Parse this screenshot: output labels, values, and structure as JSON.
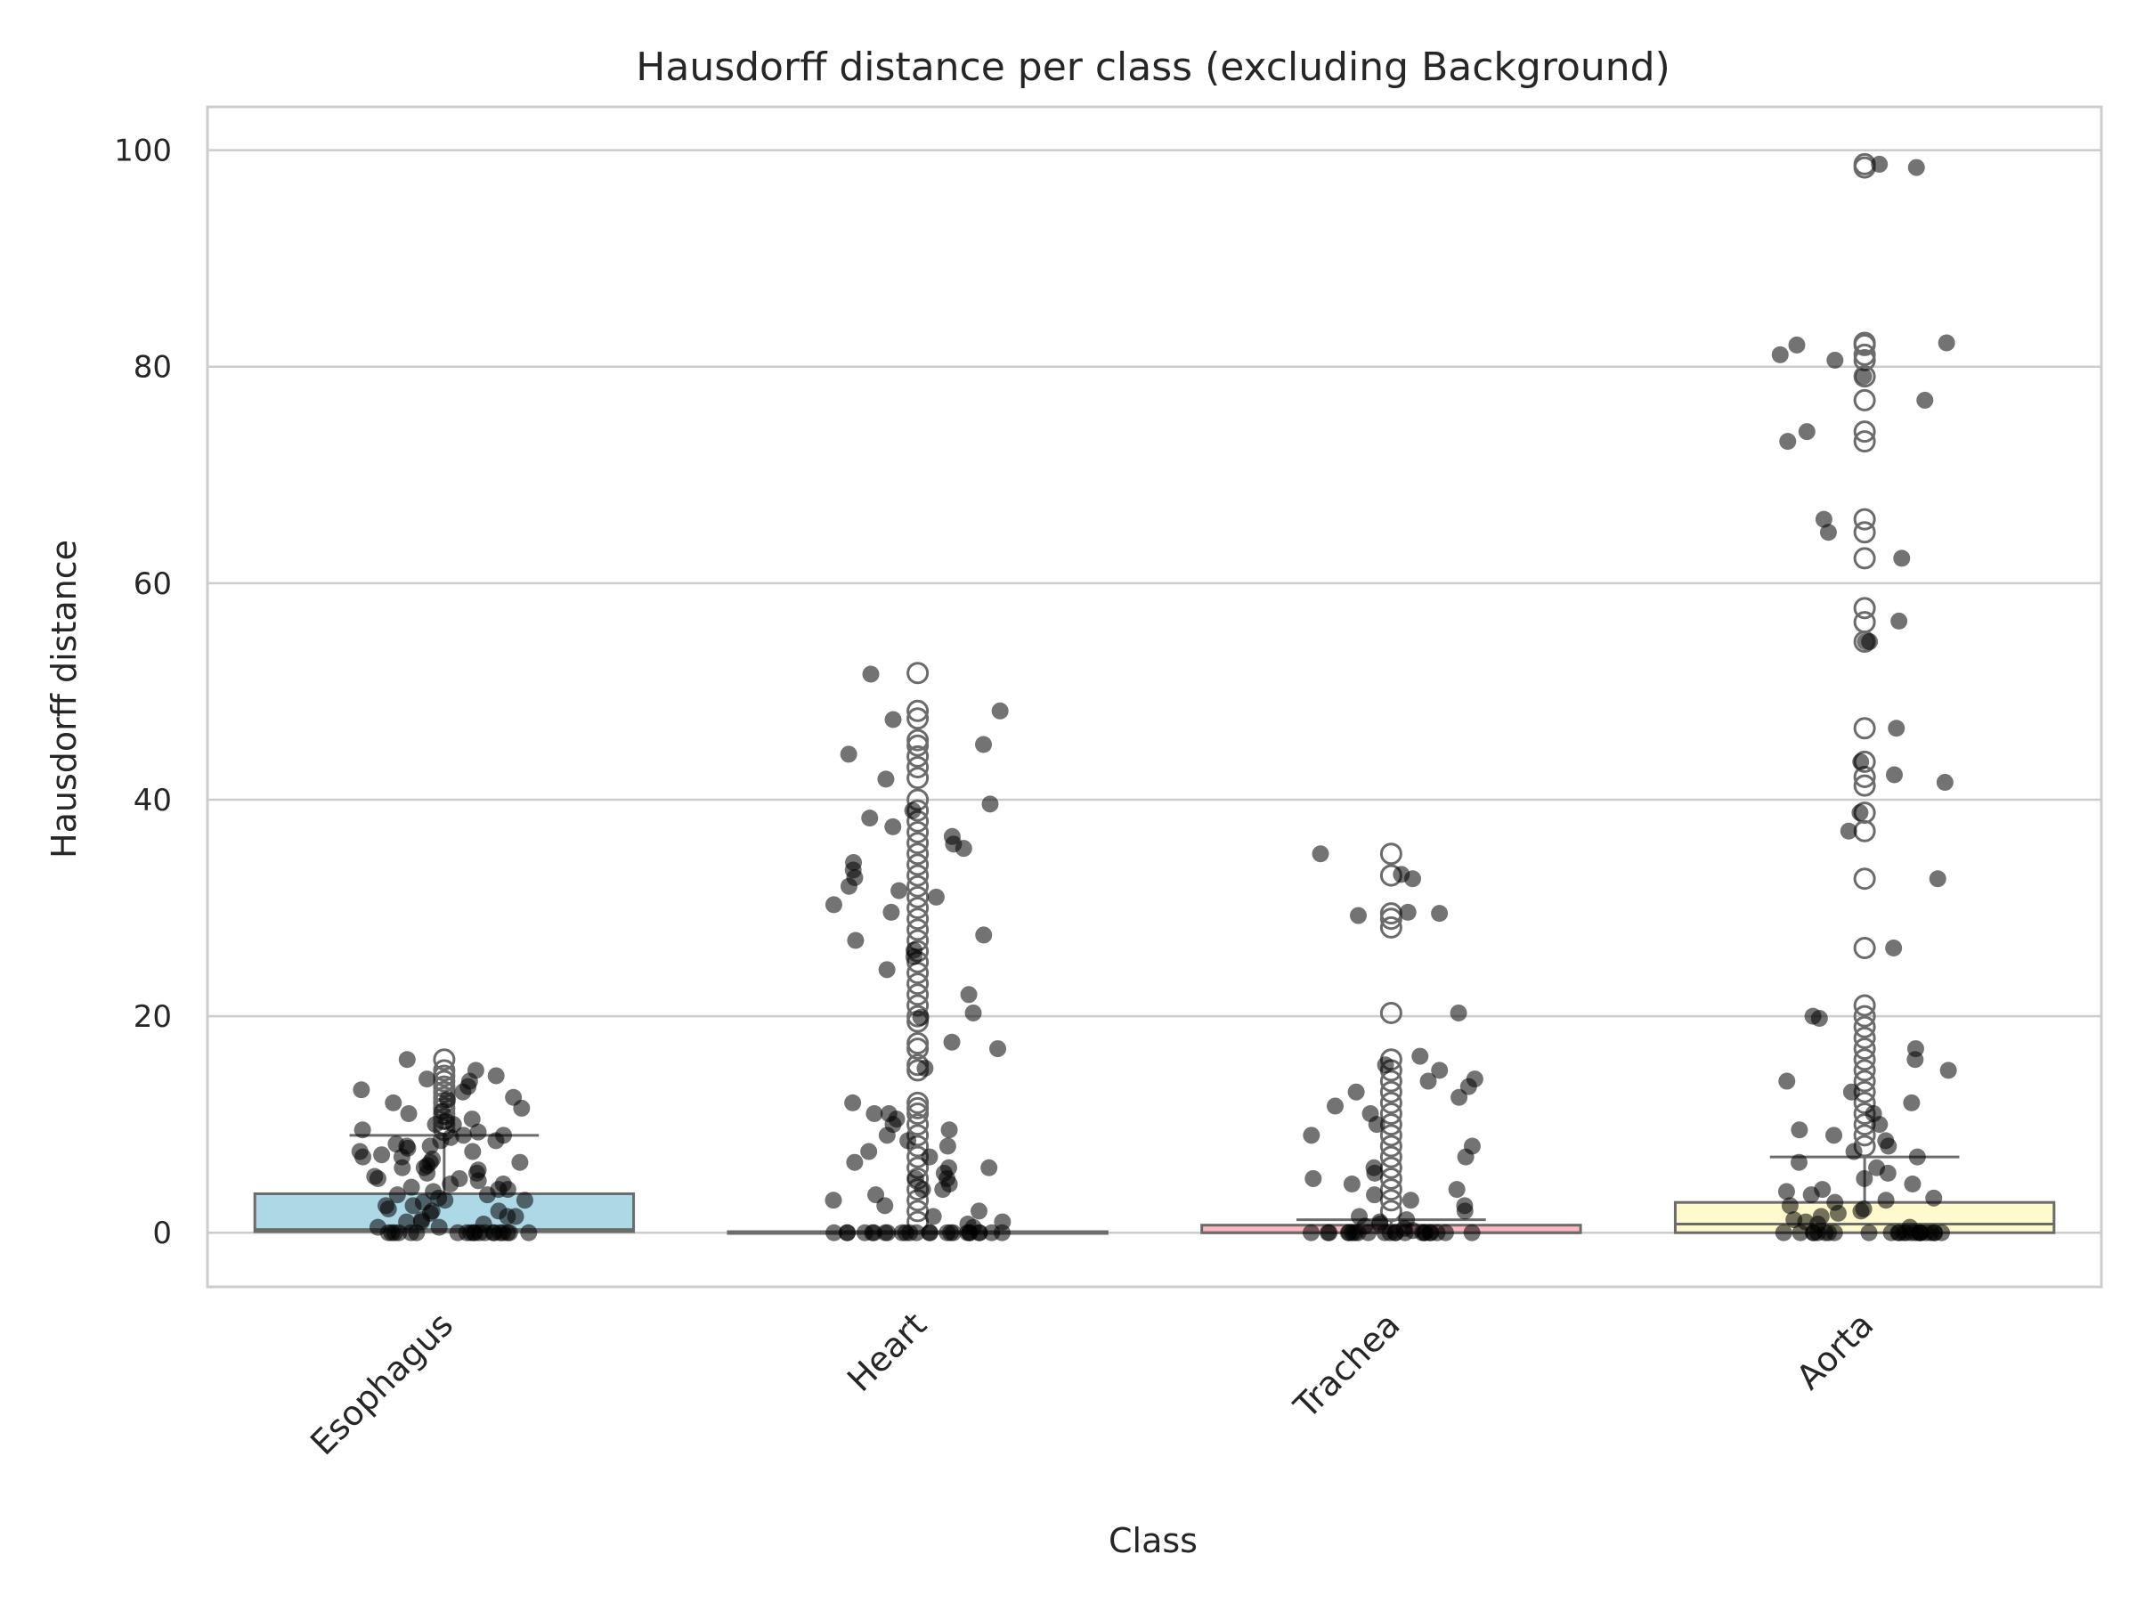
{
  "chart_data": {
    "type": "box",
    "title": "Hausdorff distance per class (excluding Background)",
    "xlabel": "Class",
    "ylabel": "Hausdorff distance",
    "ylim": [
      -5,
      104
    ],
    "yticks": [
      0,
      20,
      40,
      60,
      80,
      100
    ],
    "grid": "horizontal",
    "categories": [
      "Esophagus",
      "Heart",
      "Trachea",
      "Aorta"
    ],
    "colors": {
      "Esophagus": "#add8e6",
      "Heart": "#90ee90",
      "Trachea": "#ffb6c1",
      "Aorta": "#fffacd",
      "grid": "#cccccc",
      "frame": "#cccccc",
      "box_edge": "#6b6b6b",
      "points": "#000000"
    },
    "boxes": [
      {
        "category": "Esophagus",
        "q1": 0.1,
        "median": 0.3,
        "q3": 3.6,
        "whisker_low": 0,
        "whisker_high": 9.0,
        "fliers": [
          9.5,
          10,
          10.5,
          11,
          11.5,
          12,
          12.5,
          13,
          13.5,
          14,
          14.5,
          15,
          16.0
        ]
      },
      {
        "category": "Heart",
        "q1": 0,
        "median": 0,
        "q3": 0.1,
        "whisker_low": 0,
        "whisker_high": 0.1,
        "fliers": [
          1,
          2,
          3,
          4,
          5,
          6,
          7,
          8,
          9,
          10,
          11,
          11.5,
          12,
          15,
          15.5,
          17,
          17.5,
          19.5,
          20,
          21,
          22,
          23,
          24,
          25,
          26,
          27,
          28,
          29,
          30,
          31,
          32,
          33,
          34,
          35,
          36,
          37,
          38,
          39,
          40,
          42,
          43,
          44,
          45,
          45.5,
          47.5,
          48.2,
          51.7
        ]
      },
      {
        "category": "Trachea",
        "q1": 0,
        "median": 0,
        "q3": 0.7,
        "whisker_low": 0,
        "whisker_high": 1.2,
        "fliers": [
          2,
          3,
          4,
          5,
          6,
          7,
          8,
          9,
          10,
          11,
          12,
          13,
          14,
          15,
          16,
          20.3,
          28.2,
          29,
          29.5,
          33,
          35
        ]
      },
      {
        "category": "Aorta",
        "q1": 0,
        "median": 0.8,
        "q3": 2.8,
        "whisker_low": 0,
        "whisker_high": 7.0,
        "fliers": [
          8,
          9,
          10,
          11,
          12,
          13,
          14,
          15,
          16,
          17,
          18,
          19,
          20,
          21,
          26.3,
          32.7,
          37.1,
          38.8,
          41.3,
          42.1,
          43.5,
          46.6,
          54.6,
          56.4,
          57.7,
          62.3,
          64.7,
          65.9,
          73.1,
          74,
          76.9,
          79.1,
          80.6,
          81.1,
          82,
          82.2,
          98.4,
          98.7
        ]
      }
    ],
    "strip_points": [
      {
        "category": "Esophagus",
        "values": [
          0,
          0,
          0,
          0,
          0,
          0,
          0,
          0,
          0,
          0,
          0,
          0,
          0,
          0,
          0,
          0,
          0,
          0,
          0,
          0,
          0.5,
          0.5,
          0.8,
          1,
          1,
          1.2,
          1.5,
          1.5,
          1.8,
          2,
          2,
          2.2,
          2.5,
          2.5,
          2.8,
          3,
          3,
          3.2,
          3.5,
          3.5,
          3.8,
          4,
          4,
          4.2,
          4.5,
          4.5,
          4.8,
          5,
          5,
          5.2,
          5.5,
          5.5,
          5.8,
          6,
          6,
          6.2,
          6.5,
          6.5,
          6.8,
          7,
          7,
          7.2,
          7.5,
          7.5,
          7.8,
          8,
          8,
          8.2,
          8.5,
          8.5,
          8.8,
          9,
          9,
          9.3,
          9.5,
          10,
          10,
          10.3,
          10.5,
          11,
          11.2,
          11.5,
          12,
          12.3,
          12.5,
          13,
          13.2,
          13.5,
          14,
          14.2,
          14.5,
          15,
          16
        ]
      },
      {
        "category": "Heart",
        "values": [
          0,
          0,
          0,
          0,
          0,
          0,
          0,
          0,
          0,
          0,
          0,
          0,
          0,
          0,
          0,
          0,
          0,
          0,
          0,
          0,
          0,
          0,
          0,
          0,
          0.5,
          0.8,
          1,
          1.5,
          2,
          2.5,
          3,
          3.5,
          4,
          4,
          4.5,
          5,
          5,
          5.5,
          6,
          6,
          6.5,
          7,
          7.5,
          8,
          8.5,
          9,
          9.5,
          10,
          10.5,
          11,
          11,
          12,
          15.2,
          17,
          17.6,
          19.9,
          20.3,
          22,
          24.3,
          25.5,
          26.1,
          27,
          27.5,
          29.6,
          30.3,
          31,
          31.6,
          32,
          32.8,
          33.5,
          34.2,
          35.5,
          35.9,
          36.6,
          37.5,
          38.3,
          39,
          39.6,
          41.9,
          44.2,
          45.1,
          47.4,
          48.2,
          51.6
        ]
      },
      {
        "category": "Trachea",
        "values": [
          0,
          0,
          0,
          0,
          0,
          0,
          0,
          0,
          0,
          0,
          0,
          0,
          0,
          0,
          0,
          0,
          0,
          0,
          0,
          0,
          0,
          0,
          0.2,
          0.4,
          0.6,
          0.8,
          1,
          1.2,
          1.5,
          2,
          2.5,
          3,
          3.5,
          4,
          4.5,
          5,
          5.5,
          6,
          7,
          8,
          9,
          10,
          11,
          11.7,
          12.5,
          13,
          13.5,
          14,
          14.2,
          15,
          15.5,
          16.3,
          20.3,
          29.3,
          29.5,
          29.6,
          32.7,
          33.1,
          35
        ]
      },
      {
        "category": "Aorta",
        "values": [
          0,
          0,
          0,
          0,
          0,
          0,
          0,
          0,
          0,
          0,
          0,
          0,
          0,
          0,
          0,
          0,
          0,
          0,
          0,
          0,
          0,
          0,
          0,
          0,
          0.5,
          0.8,
          1,
          1.2,
          1.5,
          1.8,
          2,
          2.2,
          2.5,
          2.8,
          3,
          3.2,
          3.5,
          3.8,
          4,
          4.5,
          5,
          5.5,
          6,
          6.5,
          7,
          7.5,
          8,
          8.5,
          9,
          9.5,
          10,
          11,
          12,
          13,
          14,
          15,
          16,
          17,
          19.8,
          20,
          26.3,
          32.7,
          37.1,
          38.8,
          41.6,
          42.3,
          43.5,
          46.6,
          54.6,
          54.6,
          56.5,
          62.3,
          64.7,
          65.9,
          73.1,
          74,
          76.9,
          79.1,
          80.6,
          81.1,
          82,
          82.2,
          98.4,
          98.7
        ]
      }
    ]
  }
}
